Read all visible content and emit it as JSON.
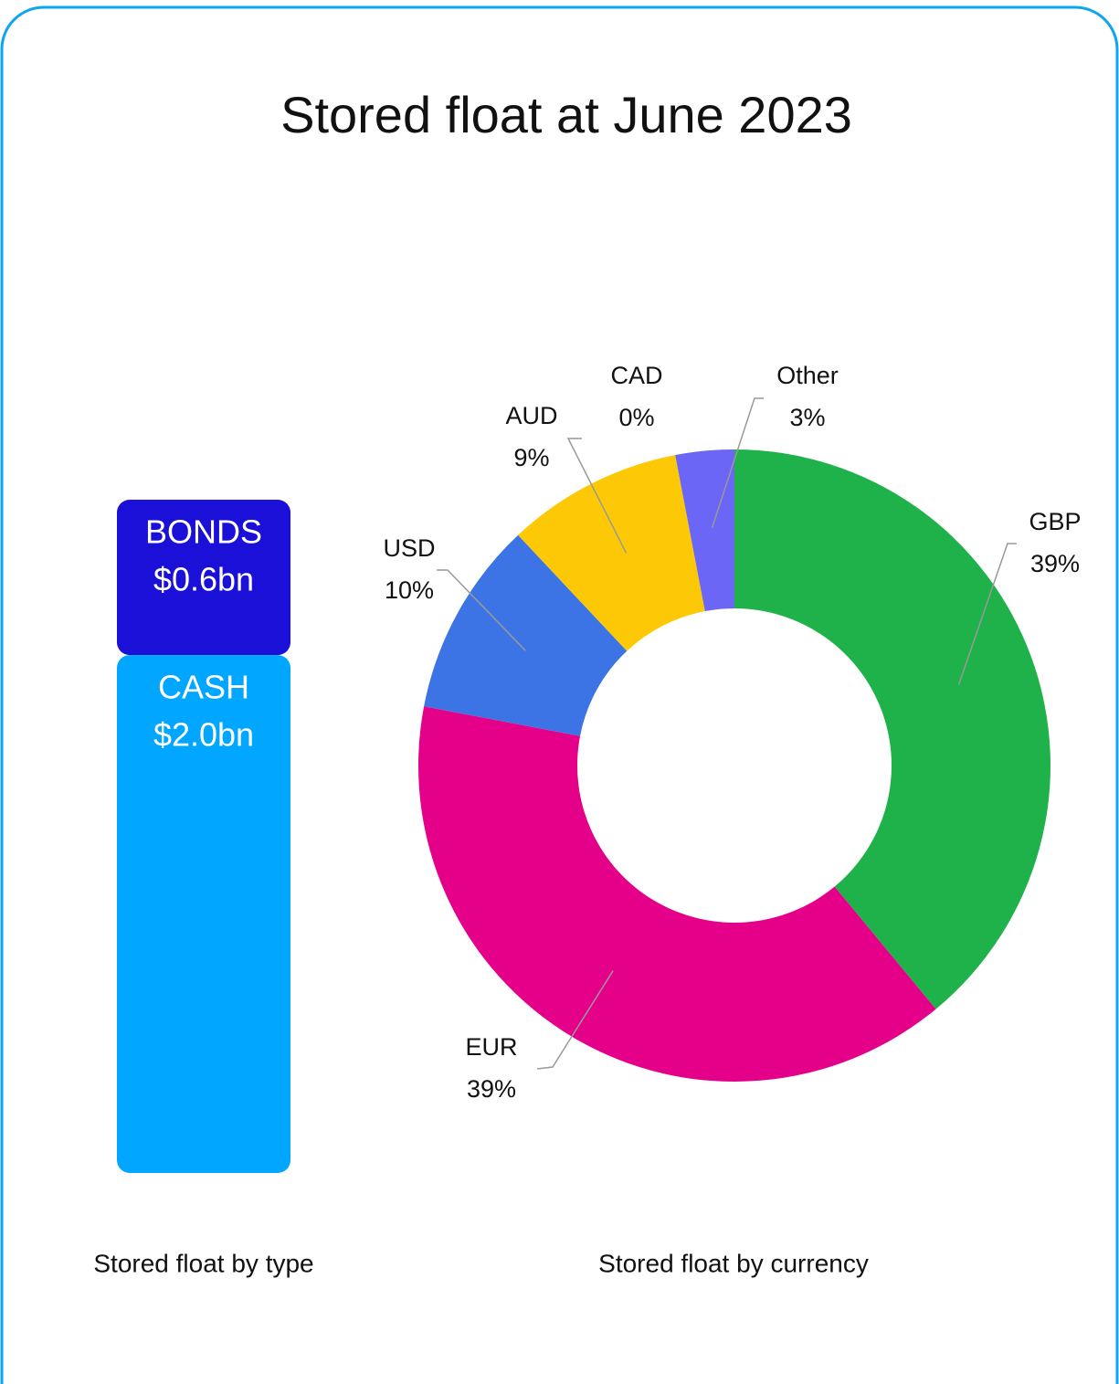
{
  "title": "Stored float at June 2023",
  "chart_data": [
    {
      "type": "stacked-bar",
      "caption": "Stored float by type",
      "series": [
        {
          "name": "BONDS",
          "color": "#1a10d8",
          "values": [
            0.6
          ],
          "value_labels": [
            "$0.6bn"
          ]
        },
        {
          "name": "CASH",
          "color": "#00a6ff",
          "values": [
            2.0
          ],
          "value_labels": [
            "$2.0bn"
          ]
        }
      ]
    },
    {
      "type": "donut",
      "caption": "Stored float by currency",
      "categories": [
        "GBP",
        "EUR",
        "USD",
        "AUD",
        "CAD",
        "Other"
      ],
      "values": [
        39,
        39,
        10,
        9,
        0,
        3
      ],
      "value_labels": [
        "39%",
        "39%",
        "10%",
        "9%",
        "0%",
        "3%"
      ],
      "colors": [
        "#1fb24a",
        "#e5008a",
        "#3c74e6",
        "#fdc907",
        "#5a9e6f",
        "#6b66f5"
      ]
    }
  ]
}
